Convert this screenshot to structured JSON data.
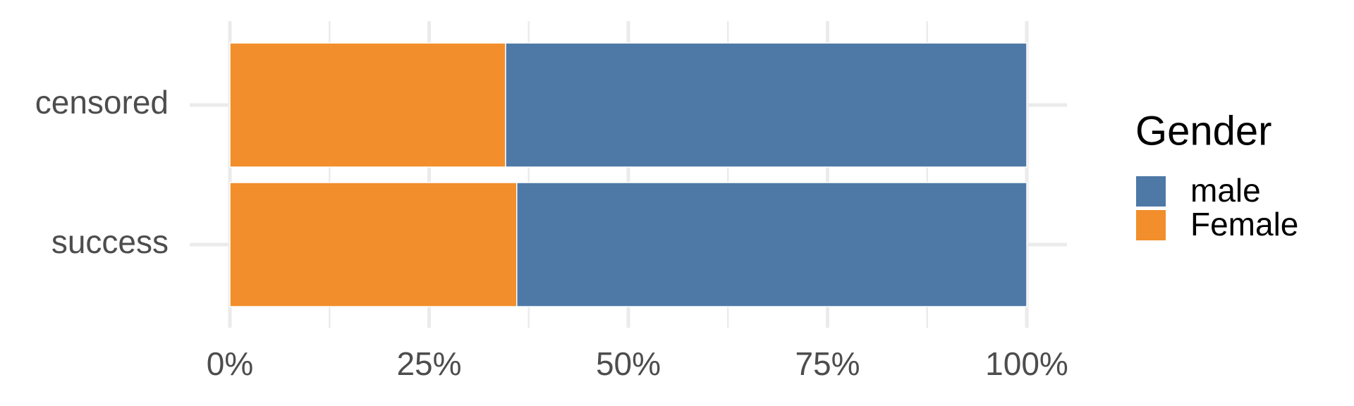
{
  "chart_data": {
    "type": "stacked-barh",
    "categories": [
      "censored",
      "success"
    ],
    "series": [
      {
        "name": "male",
        "color": "#4e79a7",
        "values": [
          65.4,
          64.0
        ]
      },
      {
        "name": "Female",
        "color": "#f28e2b",
        "values": [
          34.6,
          36.0
        ]
      }
    ],
    "xlim": [
      0,
      100
    ],
    "xticks": [
      {
        "value": 0,
        "label": "0%"
      },
      {
        "value": 25,
        "label": "25%"
      },
      {
        "value": 50,
        "label": "50%"
      },
      {
        "value": 75,
        "label": "75%"
      },
      {
        "value": 100,
        "label": "100%"
      }
    ],
    "xminorticks": [
      12.5,
      37.5,
      62.5,
      87.5
    ],
    "grid": true,
    "legend_title": "Gender",
    "legend_position": "right"
  }
}
